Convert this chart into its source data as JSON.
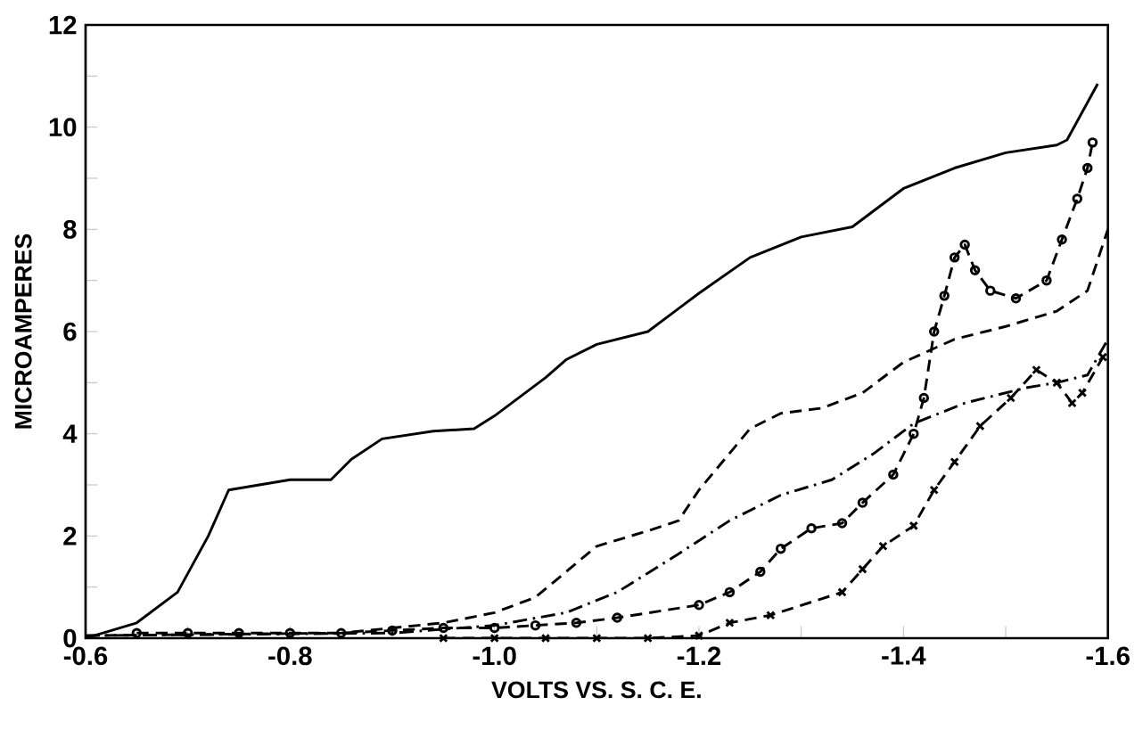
{
  "chart_data": {
    "type": "line",
    "xlabel": "VOLTS  VS. S. C. E.",
    "ylabel": "MICROAMPERES",
    "xlim": [
      -0.6,
      -1.6
    ],
    "ylim": [
      0,
      12
    ],
    "xticks": [
      {
        "value": -0.6,
        "label": "-0.6"
      },
      {
        "value": -0.7,
        "label": null
      },
      {
        "value": -0.8,
        "label": "-0.8"
      },
      {
        "value": -0.9,
        "label": null
      },
      {
        "value": -1.0,
        "label": "-1.0"
      },
      {
        "value": -1.1,
        "label": null
      },
      {
        "value": -1.2,
        "label": "-1.2"
      },
      {
        "value": -1.3,
        "label": null
      },
      {
        "value": -1.4,
        "label": "-1.4"
      },
      {
        "value": -1.5,
        "label": null
      },
      {
        "value": -1.6,
        "label": "-1.6"
      }
    ],
    "yticks": [
      0,
      {
        "value": 1,
        "label": null
      },
      2,
      {
        "value": 3,
        "label": null
      },
      4,
      {
        "value": 5,
        "label": null
      },
      6,
      {
        "value": 7,
        "label": null
      },
      8,
      {
        "value": 9,
        "label": null
      },
      10,
      {
        "value": 11,
        "label": null
      },
      12
    ],
    "series": [
      {
        "color": "#000000",
        "line_style": "solid",
        "marker": "none",
        "x": [
          -0.6,
          -0.65,
          -0.69,
          -0.72,
          -0.74,
          -0.8,
          -0.84,
          -0.86,
          -0.89,
          -0.94,
          -0.98,
          -1.0,
          -1.05,
          -1.07,
          -1.1,
          -1.15,
          -1.2,
          -1.25,
          -1.3,
          -1.35,
          -1.4,
          -1.45,
          -1.5,
          -1.55,
          -1.56,
          -1.59
        ],
        "values": [
          0,
          0.3,
          0.9,
          2.0,
          2.9,
          3.1,
          3.1,
          3.5,
          3.9,
          4.05,
          4.1,
          4.35,
          5.1,
          5.45,
          5.75,
          6.0,
          6.75,
          7.45,
          7.85,
          8.05,
          8.8,
          9.2,
          9.5,
          9.65,
          9.75,
          10.85
        ]
      },
      {
        "color": "#000000",
        "line_style": "dashed",
        "marker": "none",
        "x": [
          -0.6,
          -0.85,
          -0.9,
          -0.95,
          -1.0,
          -1.04,
          -1.07,
          -1.1,
          -1.15,
          -1.18,
          -1.2,
          -1.25,
          -1.28,
          -1.32,
          -1.36,
          -1.4,
          -1.45,
          -1.5,
          -1.55,
          -1.58,
          -1.6
        ],
        "values": [
          0.05,
          0.1,
          0.2,
          0.3,
          0.5,
          0.8,
          1.3,
          1.8,
          2.1,
          2.3,
          2.9,
          4.1,
          4.4,
          4.5,
          4.8,
          5.4,
          5.85,
          6.1,
          6.4,
          6.8,
          8.0
        ]
      },
      {
        "color": "#000000",
        "line_style": "dashdot",
        "marker": "none",
        "x": [
          -0.6,
          -0.9,
          -1.0,
          -1.07,
          -1.12,
          -1.18,
          -1.23,
          -1.28,
          -1.33,
          -1.37,
          -1.41,
          -1.46,
          -1.52,
          -1.55,
          -1.58,
          -1.6
        ],
        "values": [
          0.05,
          0.1,
          0.25,
          0.5,
          0.9,
          1.65,
          2.3,
          2.8,
          3.1,
          3.6,
          4.2,
          4.6,
          4.9,
          5.0,
          5.15,
          5.85
        ]
      },
      {
        "color": "#000000",
        "line_style": "dashed",
        "marker": "circle",
        "x": [
          -0.65,
          -0.7,
          -0.75,
          -0.8,
          -0.85,
          -0.9,
          -0.95,
          -1.0,
          -1.04,
          -1.08,
          -1.12,
          -1.2,
          -1.23,
          -1.26,
          -1.28,
          -1.31,
          -1.34,
          -1.36,
          -1.39,
          -1.41,
          -1.42,
          -1.43,
          -1.44,
          -1.45,
          -1.46,
          -1.47,
          -1.485,
          -1.51,
          -1.54,
          -1.555,
          -1.57,
          -1.58,
          -1.585
        ],
        "values": [
          0.1,
          0.1,
          0.1,
          0.1,
          0.1,
          0.15,
          0.2,
          0.2,
          0.25,
          0.3,
          0.4,
          0.65,
          0.9,
          1.3,
          1.75,
          2.15,
          2.25,
          2.65,
          3.2,
          4.0,
          4.7,
          6.0,
          6.7,
          7.45,
          7.7,
          7.2,
          6.8,
          6.65,
          7.0,
          7.8,
          8.6,
          9.2,
          9.7
        ]
      },
      {
        "color": "#000000",
        "line_style": "dashed",
        "marker": "cross",
        "x": [
          -0.95,
          -1.0,
          -1.05,
          -1.1,
          -1.15,
          -1.2,
          -1.23,
          -1.27,
          -1.34,
          -1.36,
          -1.38,
          -1.41,
          -1.43,
          -1.45,
          -1.475,
          -1.505,
          -1.53,
          -1.55,
          -1.565,
          -1.575,
          -1.595
        ],
        "values": [
          0,
          0,
          0,
          0,
          0,
          0.05,
          0.3,
          0.45,
          0.9,
          1.35,
          1.8,
          2.2,
          2.9,
          3.45,
          4.15,
          4.7,
          5.25,
          5.0,
          4.6,
          4.8,
          5.5
        ]
      }
    ]
  }
}
